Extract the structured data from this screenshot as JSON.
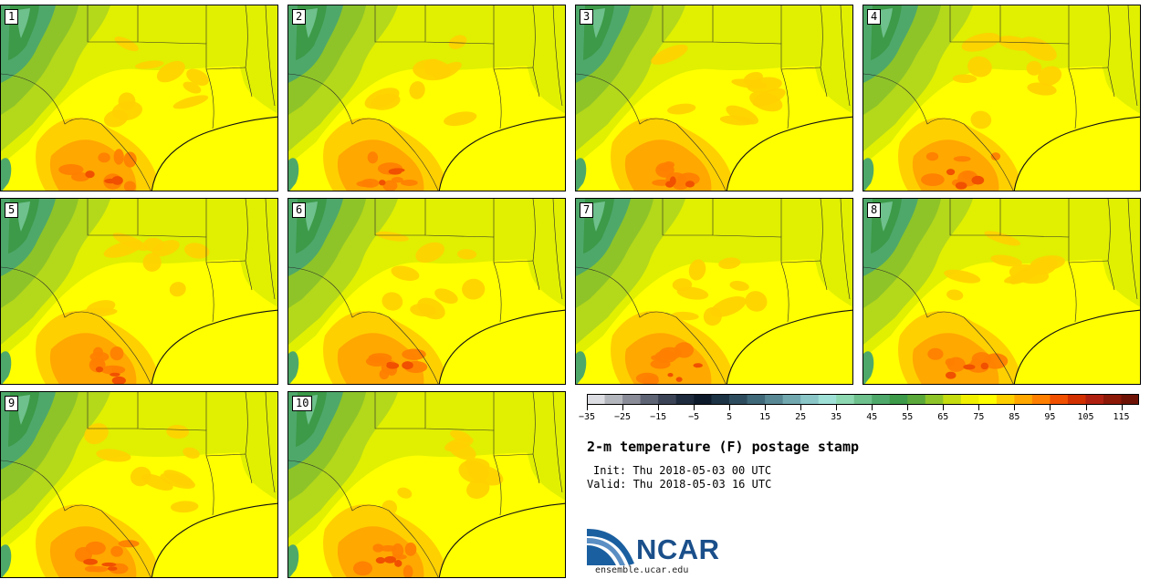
{
  "panels": [
    {
      "label": "1"
    },
    {
      "label": "2"
    },
    {
      "label": "3"
    },
    {
      "label": "4"
    },
    {
      "label": "5"
    },
    {
      "label": "6"
    },
    {
      "label": "7"
    },
    {
      "label": "8"
    },
    {
      "label": "9"
    },
    {
      "label": "10"
    }
  ],
  "colorbar": {
    "colors": [
      "#dcdde2",
      "#b4b6bd",
      "#8a8d98",
      "#5e6474",
      "#3b4457",
      "#1e2a3d",
      "#0d1a2c",
      "#1c3345",
      "#2d4d5e",
      "#3f6878",
      "#588894",
      "#71a8b0",
      "#8ac6c8",
      "#9fe0d6",
      "#8dd8b0",
      "#6ec08c",
      "#4ea86a",
      "#3c9a48",
      "#5aa83a",
      "#8ec428",
      "#c4dc10",
      "#f0f000",
      "#ffff00",
      "#ffd000",
      "#ffa800",
      "#ff8000",
      "#f05000",
      "#d23000",
      "#b02010",
      "#8c1808",
      "#6e1206"
    ],
    "tick_labels": [
      "−35",
      "−25",
      "−15",
      "−5",
      "5",
      "15",
      "25",
      "35",
      "45",
      "55",
      "65",
      "75",
      "85",
      "95",
      "105",
      "115"
    ]
  },
  "title": "2-m temperature (F) postage stamp",
  "init": "Init: Thu 2018-05-03 00 UTC",
  "valid": "Valid: Thu 2018-05-03 16 UTC",
  "logo": {
    "text": "NCAR",
    "url": "ensemble.ucar.edu",
    "color": "#1a4f8a"
  }
}
